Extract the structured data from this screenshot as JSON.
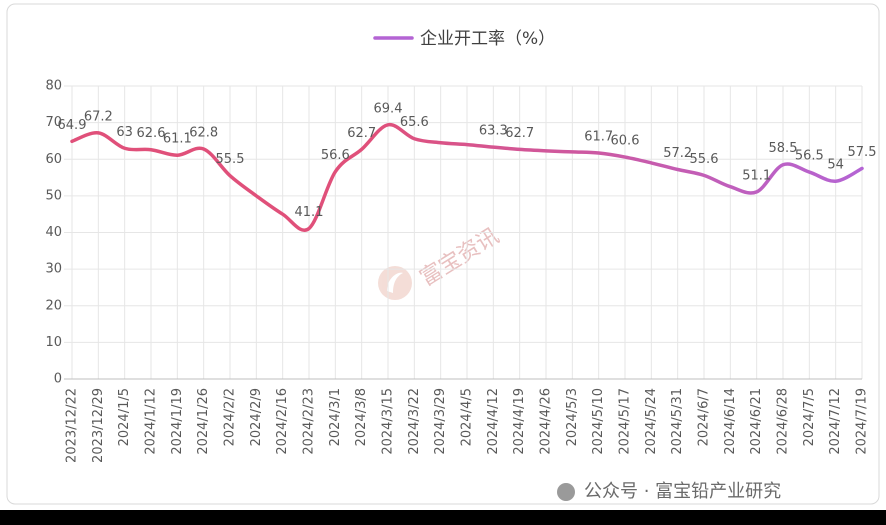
{
  "chart_data": {
    "type": "line",
    "categories": [
      "2023/12/22",
      "2023/12/29",
      "2024/1/5",
      "2024/1/12",
      "2024/1/19",
      "2024/1/26",
      "2024/2/2",
      "2024/2/9",
      "2024/2/16",
      "2024/2/23",
      "2024/3/1",
      "2024/3/8",
      "2024/3/15",
      "2024/3/22",
      "2024/3/29",
      "2024/4/5",
      "2024/4/12",
      "2024/4/19",
      "2024/4/26",
      "2024/5/3",
      "2024/5/10",
      "2024/5/17",
      "2024/5/24",
      "2024/5/31",
      "2024/6/7",
      "2024/6/14",
      "2024/6/21",
      "2024/6/28",
      "2024/7/5",
      "2024/7/12",
      "2024/7/19"
    ],
    "series": [
      {
        "name": "企业开工率（%）",
        "color": "#b464d4",
        "gradient_start": "#e0507a",
        "values": [
          64.9,
          67.2,
          63,
          62.6,
          61.1,
          62.8,
          55.5,
          50,
          45,
          41.1,
          56.6,
          62.7,
          69.4,
          65.6,
          64.5,
          64,
          63.3,
          62.7,
          62.3,
          62,
          61.7,
          60.6,
          59,
          57.2,
          55.6,
          52.5,
          51.1,
          58.5,
          56.5,
          54,
          57.5
        ],
        "value_labels": [
          "64.9",
          "67.2",
          "63",
          "62.6",
          "61.1",
          "62.8",
          "55.5",
          null,
          null,
          "41.1",
          "56.6",
          "62.7",
          "69.4",
          "65.6",
          null,
          null,
          "63.3",
          "62.7",
          null,
          null,
          "61.7",
          "60.6",
          null,
          "57.2",
          "55.6",
          null,
          "51.1",
          "58.5",
          "56.5",
          "54",
          "57.5"
        ]
      }
    ],
    "ylim": [
      0,
      80
    ],
    "yticks": [
      0,
      10,
      20,
      30,
      40,
      50,
      60,
      70,
      80
    ],
    "grid": true,
    "legend": "top",
    "watermarks": [
      "富宝资讯",
      "公众号 · 富宝铅产业研究"
    ]
  }
}
